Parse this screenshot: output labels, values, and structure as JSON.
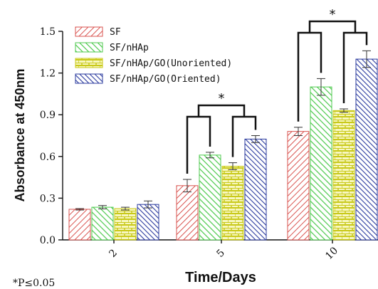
{
  "chart_data": {
    "type": "bar",
    "categories": [
      "2",
      "5",
      "10"
    ],
    "series": [
      {
        "name": "SF",
        "values": [
          0.22,
          0.39,
          0.78
        ],
        "errors": [
          0.005,
          0.045,
          0.03
        ],
        "color": "#d9534f",
        "pattern": "diag-right"
      },
      {
        "name": "SF/nHAp",
        "values": [
          0.235,
          0.61,
          1.1
        ],
        "errors": [
          0.012,
          0.02,
          0.06
        ],
        "color": "#4cc94c",
        "pattern": "diag-left"
      },
      {
        "name": "SF/nHAp/GO(Unoriented)",
        "values": [
          0.225,
          0.53,
          0.93
        ],
        "errors": [
          0.01,
          0.025,
          0.012
        ],
        "color": "#c9c91a",
        "pattern": "brick"
      },
      {
        "name": "SF/nHAp/GO(Oriented)",
        "values": [
          0.255,
          0.725,
          1.3
        ],
        "errors": [
          0.025,
          0.025,
          0.06
        ],
        "color": "#2a3a9e",
        "pattern": "diag-left"
      }
    ],
    "ylabel": "Absorbance at 450nm",
    "xlabel": "Time/Days",
    "ylim": [
      0,
      1.5
    ],
    "yticks": [
      "0.0",
      "0.3",
      "0.6",
      "0.9",
      "1.2",
      "1.5"
    ],
    "legend_position": "top-left",
    "significance_marker": "*",
    "footnote": "*P≤0.05"
  }
}
